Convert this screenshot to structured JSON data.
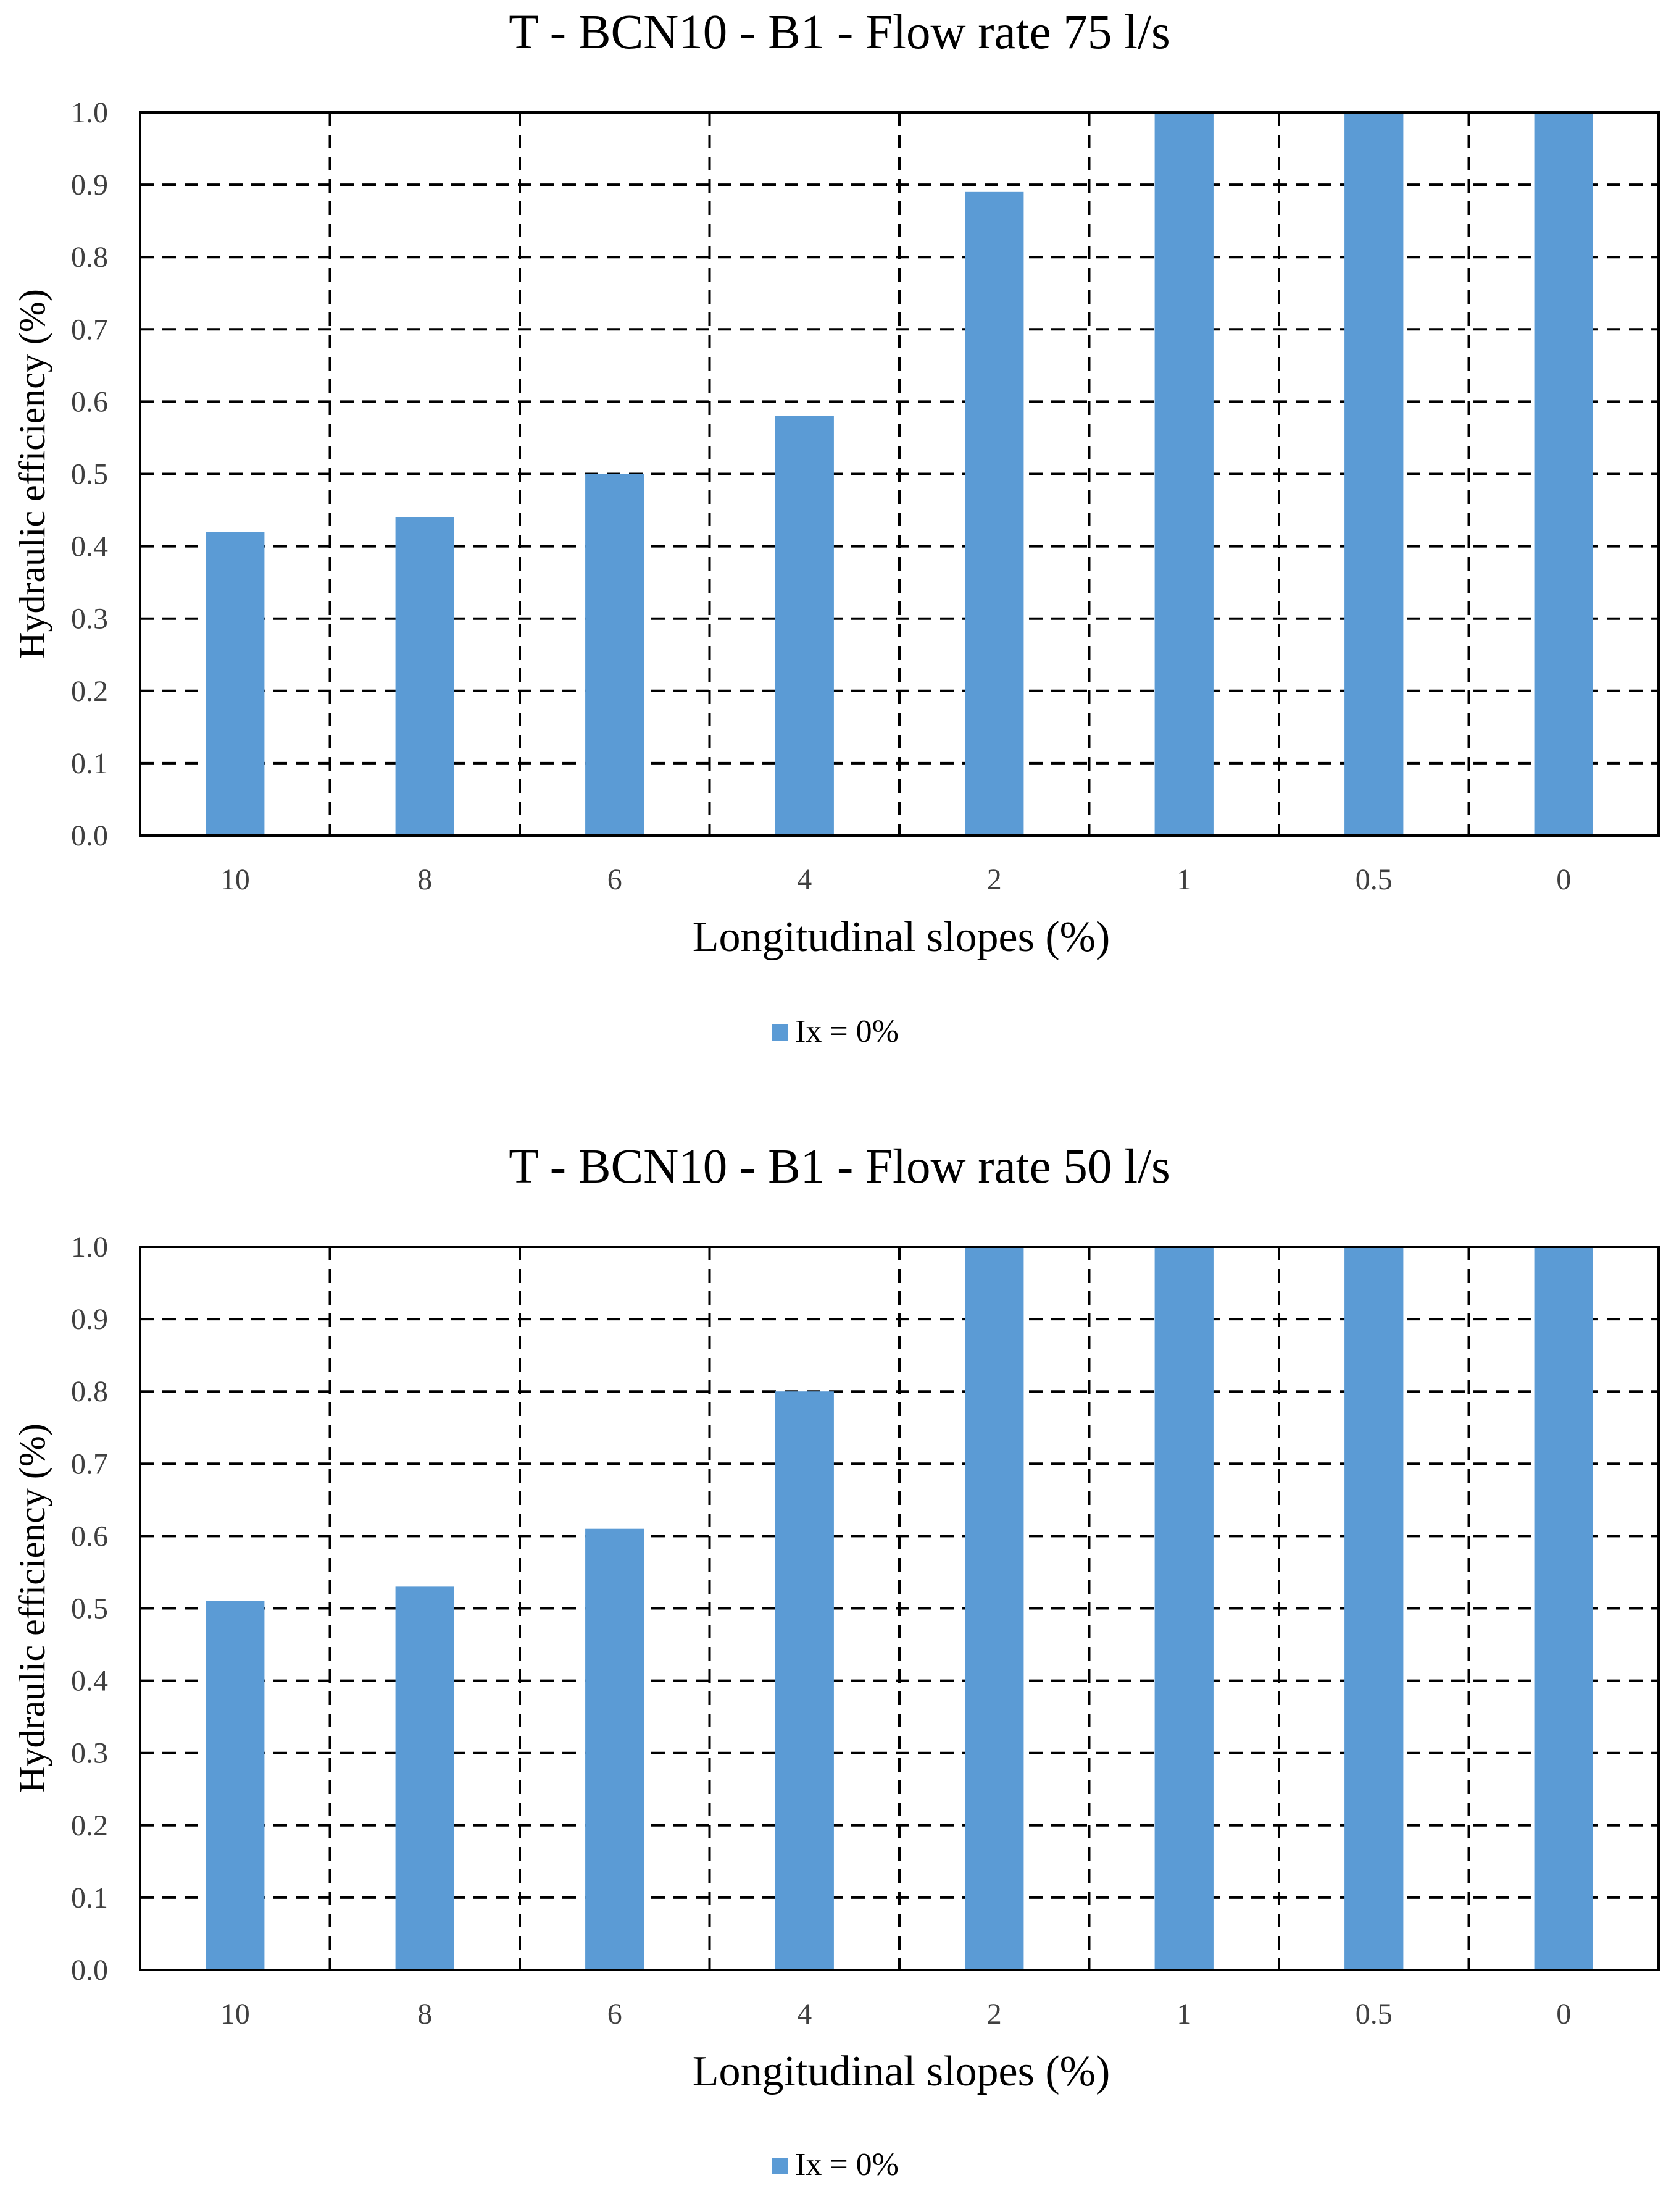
{
  "chart_data": [
    {
      "type": "bar",
      "title": "T - BCN10 - B1 - Flow rate 75 l/s",
      "xlabel": "Longitudinal slopes (%)",
      "ylabel": "Hydraulic efficiency  (%)",
      "categories": [
        "10",
        "8",
        "6",
        "4",
        "2",
        "1",
        "0.5",
        "0"
      ],
      "series": [
        {
          "name": "Ix = 0%",
          "values": [
            0.42,
            0.44,
            0.5,
            0.58,
            0.89,
            1.0,
            1.0,
            1.0
          ]
        }
      ],
      "ylim": [
        0,
        1.0
      ],
      "yticks": [
        "0.0",
        "0.1",
        "0.2",
        "0.3",
        "0.4",
        "0.5",
        "0.6",
        "0.7",
        "0.8",
        "0.9",
        "1.0"
      ],
      "grid": "dashed major gridlines on both axes",
      "legend": "bottom-center",
      "colors": {
        "bar": "#5b9bd5",
        "grid": "#000000",
        "axis": "#000000"
      }
    },
    {
      "type": "bar",
      "title": "T - BCN10 - B1 - Flow rate 50 l/s",
      "xlabel": "Longitudinal slopes (%)",
      "ylabel": "Hydraulic efficiency  (%)",
      "categories": [
        "10",
        "8",
        "6",
        "4",
        "2",
        "1",
        "0.5",
        "0"
      ],
      "series": [
        {
          "name": "Ix = 0%",
          "values": [
            0.51,
            0.53,
            0.61,
            0.8,
            1.0,
            1.0,
            1.0,
            1.0
          ]
        }
      ],
      "ylim": [
        0,
        1.0
      ],
      "yticks": [
        "0.0",
        "0.1",
        "0.2",
        "0.3",
        "0.4",
        "0.5",
        "0.6",
        "0.7",
        "0.8",
        "0.9",
        "1.0"
      ],
      "grid": "dashed major gridlines on both axes",
      "legend": "bottom-center",
      "colors": {
        "bar": "#5b9bd5",
        "grid": "#000000",
        "axis": "#000000"
      }
    }
  ]
}
